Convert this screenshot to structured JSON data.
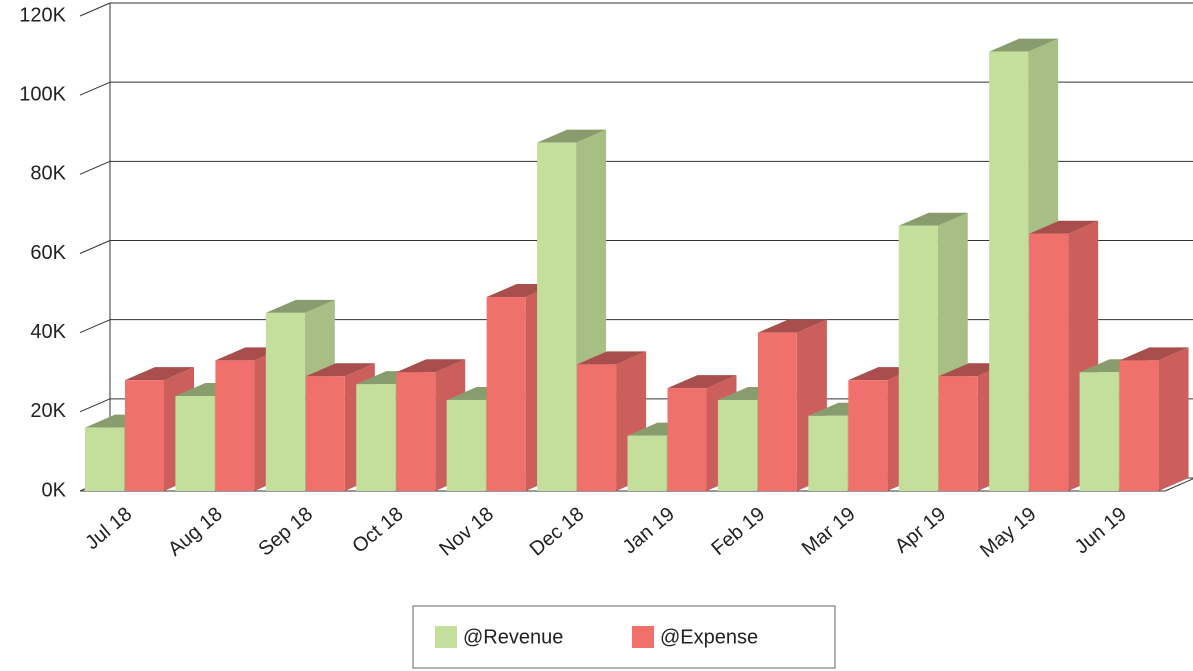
{
  "chart_data": {
    "type": "bar3d",
    "categories": [
      "Jul 18",
      "Aug 18",
      "Sep 18",
      "Oct 18",
      "Nov 18",
      "Dec 18",
      "Jan 19",
      "Feb 19",
      "Mar 19",
      "Apr 19",
      "May 19",
      "Jun 19"
    ],
    "series": [
      {
        "name": "@Revenue",
        "color": "#c4df9b",
        "values": [
          16000,
          24000,
          45000,
          27000,
          23000,
          88000,
          14000,
          23000,
          19000,
          67000,
          111000,
          30000
        ]
      },
      {
        "name": "@Expense",
        "color": "#f0706c",
        "values": [
          28000,
          33000,
          29000,
          30000,
          49000,
          32000,
          26000,
          40000,
          28000,
          29000,
          65000,
          33000
        ]
      }
    ],
    "ylim": [
      0,
      120000
    ],
    "yticks": [
      {
        "value": 0,
        "label": "0K"
      },
      {
        "value": 20000,
        "label": "20K"
      },
      {
        "value": 40000,
        "label": "40K"
      },
      {
        "value": 60000,
        "label": "60K"
      },
      {
        "value": 80000,
        "label": "80K"
      },
      {
        "value": 100000,
        "label": "100K"
      },
      {
        "value": 120000,
        "label": "120K"
      }
    ],
    "grid": true,
    "legend": "bottom"
  }
}
